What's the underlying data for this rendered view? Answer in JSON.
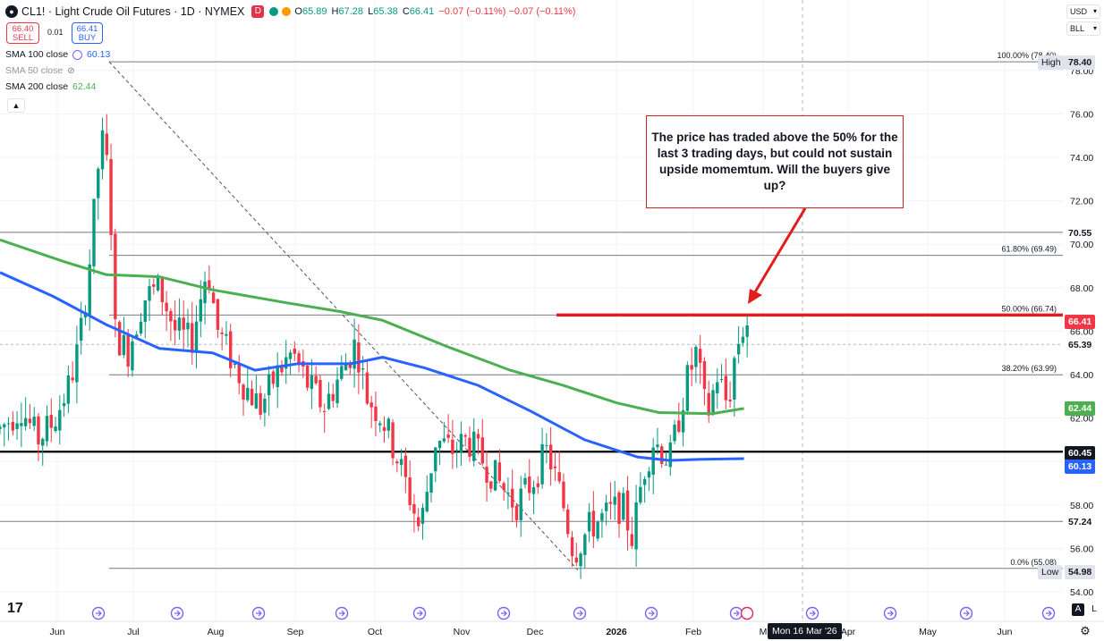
{
  "header": {
    "symbol_icon": "oil-drop-icon",
    "title": "CL1! · Light Crude Oil Futures · 1D · NYMEX",
    "tag": "D",
    "ohlc": {
      "o_label": "O",
      "o": "65.89",
      "h_label": "H",
      "h": "67.28",
      "l_label": "L",
      "l": "65.38",
      "c_label": "C",
      "c": "66.41",
      "chg": "−0.07 (−0.11%)",
      "chg2": "−0.07 (−0.11%)"
    },
    "sell_price": "66.40",
    "sell_label": "SELL",
    "spread": "0.01",
    "buy_price": "66.41",
    "buy_label": "BUY"
  },
  "indicators": [
    {
      "label": "SMA 100 close",
      "value": "60.13",
      "color": "#2962ff"
    },
    {
      "label": "SMA 50 close",
      "value": "",
      "color": "#9598a1"
    },
    {
      "label": "SMA 200 close",
      "value": "62.44",
      "color": "#4caf50"
    }
  ],
  "currency": "USD",
  "unit": "BLL",
  "annotation": "The price has traded above the 50% for the last 3 trading days, but could not sustain upside momemtum.  Will the buyers give up?",
  "date_hover": "Mon 16 Mar '26",
  "tv_logo": "17",
  "bottom_buttons": {
    "a": "A",
    "l": "L"
  },
  "colors": {
    "up": "#089981",
    "down": "#f23645",
    "sma100": "#2962ff",
    "sma200": "#4caf50",
    "annotation": "#e01e1e"
  },
  "price_labels": [
    {
      "text": "78.40",
      "tag": "High",
      "bg": "#e0e3eb",
      "fg": "#131722"
    },
    {
      "text": "70.55",
      "bg": "#ffffff",
      "fg": "#131722"
    },
    {
      "text": "66.41",
      "bg": "#f23645",
      "fg": "#ffffff"
    },
    {
      "text": "65.39",
      "bg": "#ffffff",
      "fg": "#131722"
    },
    {
      "text": "62.44",
      "bg": "#4caf50",
      "fg": "#ffffff"
    },
    {
      "text": "60.45",
      "bg": "#131722",
      "fg": "#ffffff"
    },
    {
      "text": "60.13",
      "bg": "#2962ff",
      "fg": "#ffffff"
    },
    {
      "text": "57.24",
      "bg": "#ffffff",
      "fg": "#131722"
    },
    {
      "text": "54.98",
      "tag": "Low",
      "bg": "#e0e3eb",
      "fg": "#131722"
    }
  ],
  "chart_data": {
    "type": "candlestick",
    "instrument": "CL1!",
    "timeframe": "1D",
    "y_axis_ticks": [
      54.0,
      56.0,
      58.0,
      60.0,
      62.0,
      64.0,
      66.0,
      68.0,
      70.0,
      72.0,
      74.0,
      76.0,
      78.0
    ],
    "y_range": [
      53.6,
      80.35
    ],
    "x_axis_labels": [
      "Jun",
      "Jul",
      "Aug",
      "Sep",
      "Oct",
      "Nov",
      "Dec",
      "2026",
      "Feb",
      "M",
      "Apr",
      "May",
      "Jun"
    ],
    "fibonacci": [
      {
        "label": "100.00% (78.40)",
        "value": 78.4
      },
      {
        "label": "61.80% (69.49)",
        "value": 69.49
      },
      {
        "label": "50.00% (66.74)",
        "value": 66.74
      },
      {
        "label": "38.20% (63.99)",
        "value": 63.99
      },
      {
        "label": "0.0% (55.08)",
        "value": 55.08
      }
    ],
    "horizontal_levels": [
      70.55,
      65.39,
      60.45,
      57.24,
      66.74
    ],
    "high": 78.4,
    "low": 54.98,
    "sma_200": [
      {
        "t": 0,
        "v": 70.2
      },
      {
        "t": 0.06,
        "v": 69.2
      },
      {
        "t": 0.1,
        "v": 68.6
      },
      {
        "t": 0.15,
        "v": 68.5
      },
      {
        "t": 0.2,
        "v": 67.9
      },
      {
        "t": 0.27,
        "v": 67.3
      },
      {
        "t": 0.32,
        "v": 66.9
      },
      {
        "t": 0.36,
        "v": 66.5
      },
      {
        "t": 0.42,
        "v": 65.3
      },
      {
        "t": 0.48,
        "v": 64.2
      },
      {
        "t": 0.53,
        "v": 63.5
      },
      {
        "t": 0.58,
        "v": 62.7
      },
      {
        "t": 0.62,
        "v": 62.25
      },
      {
        "t": 0.67,
        "v": 62.2
      },
      {
        "t": 0.7,
        "v": 62.44
      }
    ],
    "sma_100": [
      {
        "t": 0,
        "v": 68.7
      },
      {
        "t": 0.05,
        "v": 67.6
      },
      {
        "t": 0.1,
        "v": 66.3
      },
      {
        "t": 0.15,
        "v": 65.2
      },
      {
        "t": 0.2,
        "v": 65.0
      },
      {
        "t": 0.24,
        "v": 64.2
      },
      {
        "t": 0.28,
        "v": 64.5
      },
      {
        "t": 0.33,
        "v": 64.5
      },
      {
        "t": 0.36,
        "v": 64.8
      },
      {
        "t": 0.4,
        "v": 64.3
      },
      {
        "t": 0.45,
        "v": 63.5
      },
      {
        "t": 0.5,
        "v": 62.3
      },
      {
        "t": 0.55,
        "v": 61.0
      },
      {
        "t": 0.6,
        "v": 60.2
      },
      {
        "t": 0.63,
        "v": 60.05
      },
      {
        "t": 0.66,
        "v": 60.1
      },
      {
        "t": 0.7,
        "v": 60.13
      }
    ],
    "price_path": [
      {
        "t": 0.0,
        "v": 61.5
      },
      {
        "t": 0.02,
        "v": 62.5
      },
      {
        "t": 0.035,
        "v": 61.0
      },
      {
        "t": 0.05,
        "v": 61.8
      },
      {
        "t": 0.065,
        "v": 63.5
      },
      {
        "t": 0.075,
        "v": 65.5
      },
      {
        "t": 0.085,
        "v": 69.5
      },
      {
        "t": 0.095,
        "v": 75.0
      },
      {
        "t": 0.103,
        "v": 73.0
      },
      {
        "t": 0.108,
        "v": 66.0
      },
      {
        "t": 0.12,
        "v": 65.0
      },
      {
        "t": 0.135,
        "v": 67.5
      },
      {
        "t": 0.15,
        "v": 68.0
      },
      {
        "t": 0.165,
        "v": 66.0
      },
      {
        "t": 0.18,
        "v": 65.5
      },
      {
        "t": 0.195,
        "v": 69.0
      },
      {
        "t": 0.205,
        "v": 66.0
      },
      {
        "t": 0.215,
        "v": 65.0
      },
      {
        "t": 0.23,
        "v": 63.5
      },
      {
        "t": 0.245,
        "v": 62.5
      },
      {
        "t": 0.26,
        "v": 64.0
      },
      {
        "t": 0.275,
        "v": 65.0
      },
      {
        "t": 0.29,
        "v": 63.5
      },
      {
        "t": 0.305,
        "v": 62.5
      },
      {
        "t": 0.32,
        "v": 64.0
      },
      {
        "t": 0.335,
        "v": 65.5
      },
      {
        "t": 0.345,
        "v": 63.0
      },
      {
        "t": 0.36,
        "v": 62.0
      },
      {
        "t": 0.375,
        "v": 60.0
      },
      {
        "t": 0.385,
        "v": 58.5
      },
      {
        "t": 0.395,
        "v": 56.8
      },
      {
        "t": 0.41,
        "v": 61.0
      },
      {
        "t": 0.425,
        "v": 60.5
      },
      {
        "t": 0.44,
        "v": 61.0
      },
      {
        "t": 0.455,
        "v": 60.0
      },
      {
        "t": 0.47,
        "v": 59.0
      },
      {
        "t": 0.485,
        "v": 58.0
      },
      {
        "t": 0.5,
        "v": 59.0
      },
      {
        "t": 0.515,
        "v": 60.5
      },
      {
        "t": 0.53,
        "v": 58.0
      },
      {
        "t": 0.54,
        "v": 55.8
      },
      {
        "t": 0.555,
        "v": 57.0
      },
      {
        "t": 0.57,
        "v": 57.5
      },
      {
        "t": 0.585,
        "v": 58.0
      },
      {
        "t": 0.595,
        "v": 56.5
      },
      {
        "t": 0.605,
        "v": 59.5
      },
      {
        "t": 0.615,
        "v": 61.0
      },
      {
        "t": 0.63,
        "v": 60.0
      },
      {
        "t": 0.645,
        "v": 63.5
      },
      {
        "t": 0.655,
        "v": 65.0
      },
      {
        "t": 0.665,
        "v": 62.0
      },
      {
        "t": 0.675,
        "v": 64.0
      },
      {
        "t": 0.685,
        "v": 62.5
      },
      {
        "t": 0.69,
        "v": 64.5
      },
      {
        "t": 0.697,
        "v": 66.0
      },
      {
        "t": 0.703,
        "v": 66.41
      }
    ]
  }
}
